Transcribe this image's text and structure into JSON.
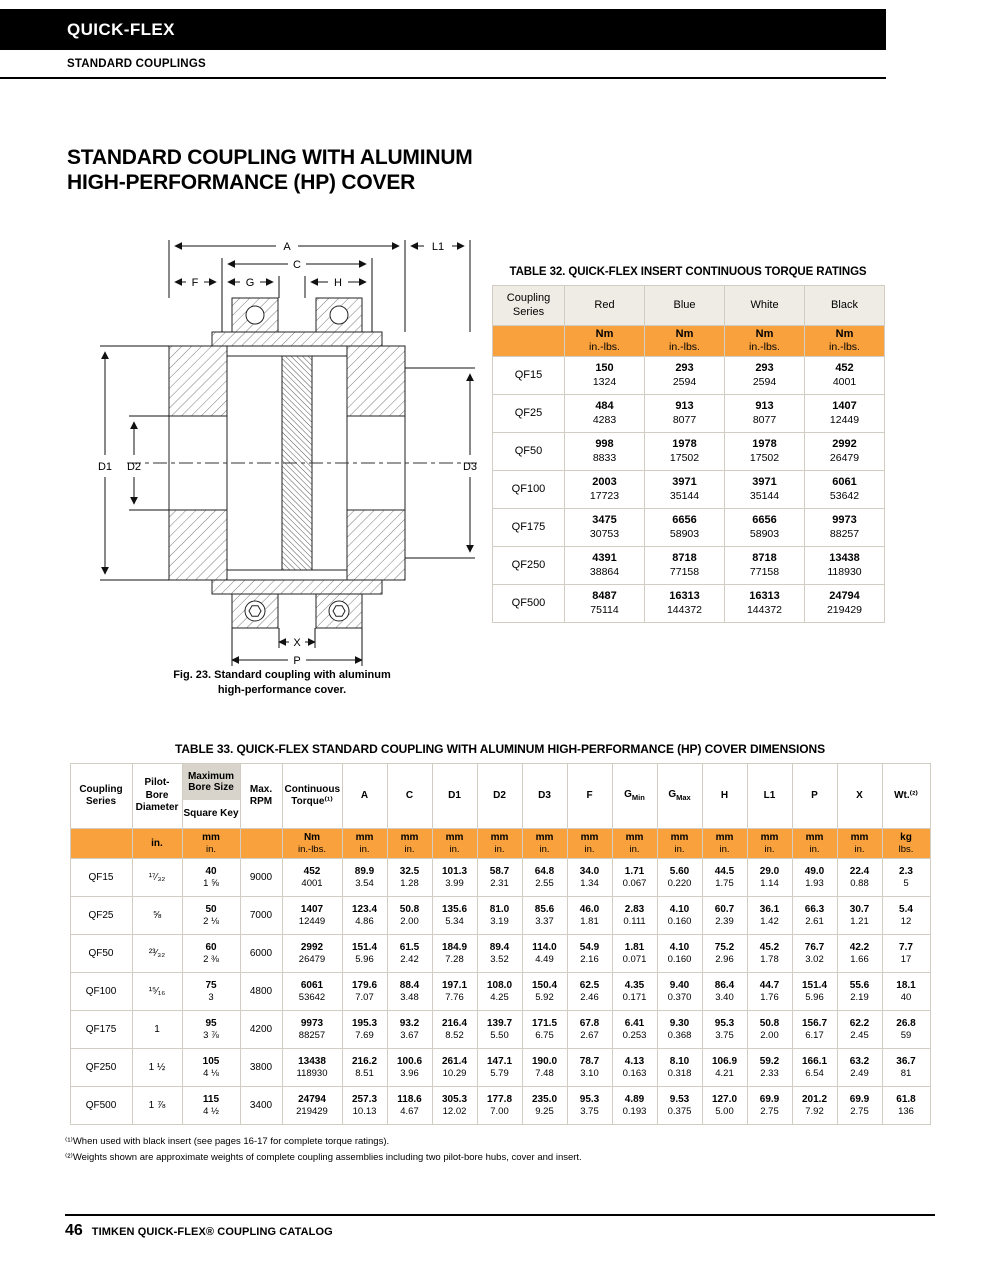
{
  "colors": {
    "accent": "#F9A13C",
    "header_band": "#EFECE5",
    "bore_band": "#D8D4CB"
  },
  "header": {
    "brand": "QUICK-FLEX",
    "subtitle": "STANDARD COUPLINGS"
  },
  "title": {
    "line1": "STANDARD COUPLING WITH ALUMINUM",
    "line2": "HIGH-PERFORMANCE (HP) COVER"
  },
  "figure": {
    "caption_line1": "Fig. 23. Standard coupling with aluminum",
    "caption_line2": "high-performance cover.",
    "labels": {
      "a": "A",
      "c": "C",
      "l1": "L1",
      "f": "F",
      "g": "G",
      "h": "H",
      "d1": "D1",
      "d2": "D2",
      "d3": "D3",
      "x": "X",
      "p": "P"
    }
  },
  "table32": {
    "title": "TABLE 32. QUICK-FLEX INSERT CONTINUOUS TORQUE RATINGS",
    "series_header": "Coupling Series",
    "color_headers": [
      "Red",
      "Blue",
      "White",
      "Black"
    ],
    "units": {
      "top": "Nm",
      "bottom": "in.-lbs."
    },
    "rows": [
      {
        "series": "QF15",
        "cells": [
          [
            "150",
            "1324"
          ],
          [
            "293",
            "2594"
          ],
          [
            "293",
            "2594"
          ],
          [
            "452",
            "4001"
          ]
        ]
      },
      {
        "series": "QF25",
        "cells": [
          [
            "484",
            "4283"
          ],
          [
            "913",
            "8077"
          ],
          [
            "913",
            "8077"
          ],
          [
            "1407",
            "12449"
          ]
        ]
      },
      {
        "series": "QF50",
        "cells": [
          [
            "998",
            "8833"
          ],
          [
            "1978",
            "17502"
          ],
          [
            "1978",
            "17502"
          ],
          [
            "2992",
            "26479"
          ]
        ]
      },
      {
        "series": "QF100",
        "cells": [
          [
            "2003",
            "17723"
          ],
          [
            "3971",
            "35144"
          ],
          [
            "3971",
            "35144"
          ],
          [
            "6061",
            "53642"
          ]
        ]
      },
      {
        "series": "QF175",
        "cells": [
          [
            "3475",
            "30753"
          ],
          [
            "6656",
            "58903"
          ],
          [
            "6656",
            "58903"
          ],
          [
            "9973",
            "88257"
          ]
        ]
      },
      {
        "series": "QF250",
        "cells": [
          [
            "4391",
            "38864"
          ],
          [
            "8718",
            "77158"
          ],
          [
            "8718",
            "77158"
          ],
          [
            "13438",
            "118930"
          ]
        ]
      },
      {
        "series": "QF500",
        "cells": [
          [
            "8487",
            "75114"
          ],
          [
            "16313",
            "144372"
          ],
          [
            "16313",
            "144372"
          ],
          [
            "24794",
            "219429"
          ]
        ]
      }
    ]
  },
  "table33": {
    "title": "TABLE 33. QUICK-FLEX STANDARD COUPLING WITH ALUMINUM HIGH-PERFORMANCE (HP) COVER DIMENSIONS",
    "headers": {
      "series": "Coupling Series",
      "pilot": "Pilot-Bore Diameter",
      "bore_top": "Maximum Bore Size",
      "bore_bottom": "Square Key",
      "rpm": "Max. RPM",
      "torque": "Continuous Torque⁽¹⁾",
      "dims": [
        "A",
        "C",
        "D1",
        "D2",
        "D3",
        "F",
        "G|Min",
        "G|Max",
        "H",
        "L1",
        "P",
        "X"
      ],
      "wt": "Wt.⁽²⁾"
    },
    "units": {
      "pilot": "in.",
      "bore": [
        "mm",
        "in."
      ],
      "torque": [
        "Nm",
        "in.-lbs."
      ],
      "dim": [
        "mm",
        "in."
      ],
      "wt": [
        "kg",
        "lbs."
      ]
    },
    "rows": [
      {
        "series": "QF15",
        "pilot": "¹⁷⁄₃₂",
        "bore": [
          "40",
          "1 ⅝"
        ],
        "rpm": "9000",
        "cells": [
          [
            "452",
            "4001"
          ],
          [
            "89.9",
            "3.54"
          ],
          [
            "32.5",
            "1.28"
          ],
          [
            "101.3",
            "3.99"
          ],
          [
            "58.7",
            "2.31"
          ],
          [
            "64.8",
            "2.55"
          ],
          [
            "34.0",
            "1.34"
          ],
          [
            "1.71",
            "0.067"
          ],
          [
            "5.60",
            "0.220"
          ],
          [
            "44.5",
            "1.75"
          ],
          [
            "29.0",
            "1.14"
          ],
          [
            "49.0",
            "1.93"
          ],
          [
            "22.4",
            "0.88"
          ],
          [
            "2.3",
            "5"
          ]
        ]
      },
      {
        "series": "QF25",
        "pilot": "⅝",
        "bore": [
          "50",
          "2 ⅛"
        ],
        "rpm": "7000",
        "cells": [
          [
            "1407",
            "12449"
          ],
          [
            "123.4",
            "4.86"
          ],
          [
            "50.8",
            "2.00"
          ],
          [
            "135.6",
            "5.34"
          ],
          [
            "81.0",
            "3.19"
          ],
          [
            "85.6",
            "3.37"
          ],
          [
            "46.0",
            "1.81"
          ],
          [
            "2.83",
            "0.111"
          ],
          [
            "4.10",
            "0.160"
          ],
          [
            "60.7",
            "2.39"
          ],
          [
            "36.1",
            "1.42"
          ],
          [
            "66.3",
            "2.61"
          ],
          [
            "30.7",
            "1.21"
          ],
          [
            "5.4",
            "12"
          ]
        ]
      },
      {
        "series": "QF50",
        "pilot": "²³⁄₃₂",
        "bore": [
          "60",
          "2 ⅜"
        ],
        "rpm": "6000",
        "cells": [
          [
            "2992",
            "26479"
          ],
          [
            "151.4",
            "5.96"
          ],
          [
            "61.5",
            "2.42"
          ],
          [
            "184.9",
            "7.28"
          ],
          [
            "89.4",
            "3.52"
          ],
          [
            "114.0",
            "4.49"
          ],
          [
            "54.9",
            "2.16"
          ],
          [
            "1.81",
            "0.071"
          ],
          [
            "4.10",
            "0.160"
          ],
          [
            "75.2",
            "2.96"
          ],
          [
            "45.2",
            "1.78"
          ],
          [
            "76.7",
            "3.02"
          ],
          [
            "42.2",
            "1.66"
          ],
          [
            "7.7",
            "17"
          ]
        ]
      },
      {
        "series": "QF100",
        "pilot": "¹⁵⁄₁₆",
        "bore": [
          "75",
          "3"
        ],
        "rpm": "4800",
        "cells": [
          [
            "6061",
            "53642"
          ],
          [
            "179.6",
            "7.07"
          ],
          [
            "88.4",
            "3.48"
          ],
          [
            "197.1",
            "7.76"
          ],
          [
            "108.0",
            "4.25"
          ],
          [
            "150.4",
            "5.92"
          ],
          [
            "62.5",
            "2.46"
          ],
          [
            "4.35",
            "0.171"
          ],
          [
            "9.40",
            "0.370"
          ],
          [
            "86.4",
            "3.40"
          ],
          [
            "44.7",
            "1.76"
          ],
          [
            "151.4",
            "5.96"
          ],
          [
            "55.6",
            "2.19"
          ],
          [
            "18.1",
            "40"
          ]
        ]
      },
      {
        "series": "QF175",
        "pilot": "1",
        "bore": [
          "95",
          "3 ⅞"
        ],
        "rpm": "4200",
        "cells": [
          [
            "9973",
            "88257"
          ],
          [
            "195.3",
            "7.69"
          ],
          [
            "93.2",
            "3.67"
          ],
          [
            "216.4",
            "8.52"
          ],
          [
            "139.7",
            "5.50"
          ],
          [
            "171.5",
            "6.75"
          ],
          [
            "67.8",
            "2.67"
          ],
          [
            "6.41",
            "0.253"
          ],
          [
            "9.30",
            "0.368"
          ],
          [
            "95.3",
            "3.75"
          ],
          [
            "50.8",
            "2.00"
          ],
          [
            "156.7",
            "6.17"
          ],
          [
            "62.2",
            "2.45"
          ],
          [
            "26.8",
            "59"
          ]
        ]
      },
      {
        "series": "QF250",
        "pilot": "1 ½",
        "bore": [
          "105",
          "4 ⅛"
        ],
        "rpm": "3800",
        "cells": [
          [
            "13438",
            "118930"
          ],
          [
            "216.2",
            "8.51"
          ],
          [
            "100.6",
            "3.96"
          ],
          [
            "261.4",
            "10.29"
          ],
          [
            "147.1",
            "5.79"
          ],
          [
            "190.0",
            "7.48"
          ],
          [
            "78.7",
            "3.10"
          ],
          [
            "4.13",
            "0.163"
          ],
          [
            "8.10",
            "0.318"
          ],
          [
            "106.9",
            "4.21"
          ],
          [
            "59.2",
            "2.33"
          ],
          [
            "166.1",
            "6.54"
          ],
          [
            "63.2",
            "2.49"
          ],
          [
            "36.7",
            "81"
          ]
        ]
      },
      {
        "series": "QF500",
        "pilot": "1 ⅞",
        "bore": [
          "115",
          "4 ½"
        ],
        "rpm": "3400",
        "cells": [
          [
            "24794",
            "219429"
          ],
          [
            "257.3",
            "10.13"
          ],
          [
            "118.6",
            "4.67"
          ],
          [
            "305.3",
            "12.02"
          ],
          [
            "177.8",
            "7.00"
          ],
          [
            "235.0",
            "9.25"
          ],
          [
            "95.3",
            "3.75"
          ],
          [
            "4.89",
            "0.193"
          ],
          [
            "9.53",
            "0.375"
          ],
          [
            "127.0",
            "5.00"
          ],
          [
            "69.9",
            "2.75"
          ],
          [
            "201.2",
            "7.92"
          ],
          [
            "69.9",
            "2.75"
          ],
          [
            "61.8",
            "136"
          ]
        ]
      }
    ]
  },
  "footnotes": [
    "⁽¹⁾When used with black insert (see pages 16-17 for complete torque ratings).",
    "⁽²⁾Weights shown are approximate weights of complete coupling assemblies including two pilot-bore hubs, cover and insert."
  ],
  "footer": {
    "page_number": "46",
    "text": "TIMKEN QUICK-FLEX® COUPLING CATALOG"
  }
}
